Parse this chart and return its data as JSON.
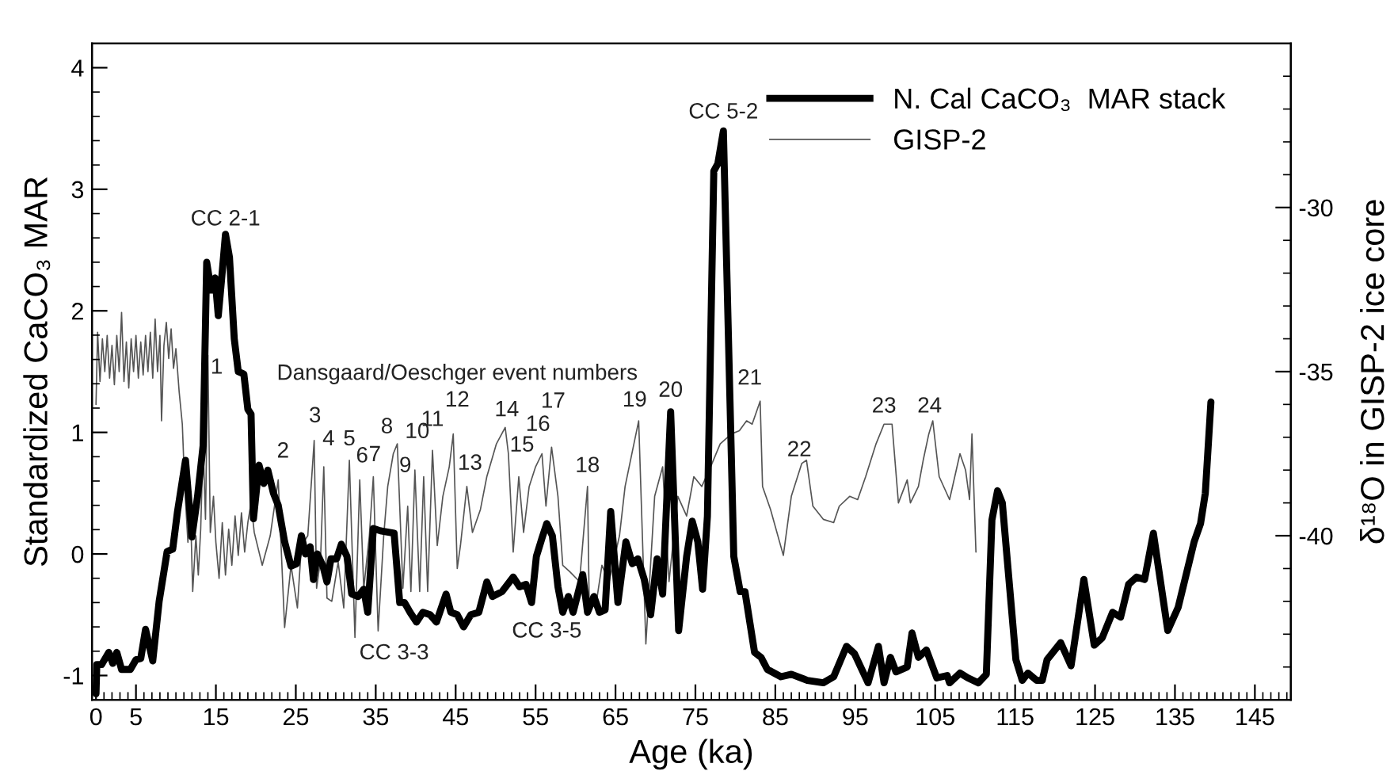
{
  "chart_data": {
    "type": "line",
    "xlabel": "Age (ka)",
    "ylabel": "Standardized CaCO₃ MAR",
    "y2label": "δ¹⁸O in GISP-2 ice core",
    "xlim": [
      -0.5,
      149.5
    ],
    "ylim": [
      -1.2,
      4.2
    ],
    "y2lim": [
      -45,
      -25
    ],
    "xticks": [
      0,
      {
        "value": 1,
        "label": null
      },
      {
        "value": 2,
        "label": null
      },
      {
        "value": 3,
        "label": null
      },
      {
        "value": 4,
        "label": null
      },
      5,
      {
        "value": 6,
        "label": null
      },
      {
        "value": 7,
        "label": null
      },
      {
        "value": 8,
        "label": null
      },
      {
        "value": 9,
        "label": null
      },
      {
        "value": 10,
        "label": null
      },
      {
        "value": 11,
        "label": null
      },
      {
        "value": 12,
        "label": null
      },
      {
        "value": 13,
        "label": null
      },
      {
        "value": 14,
        "label": null
      },
      15,
      {
        "value": 16,
        "label": null
      },
      {
        "value": 17,
        "label": null
      },
      {
        "value": 18,
        "label": null
      },
      {
        "value": 19,
        "label": null
      },
      {
        "value": 20,
        "label": null
      },
      {
        "value": 21,
        "label": null
      },
      {
        "value": 22,
        "label": null
      },
      {
        "value": 23,
        "label": null
      },
      {
        "value": 24,
        "label": null
      },
      25,
      {
        "value": 26,
        "label": null
      },
      {
        "value": 27,
        "label": null
      },
      {
        "value": 28,
        "label": null
      },
      {
        "value": 29,
        "label": null
      },
      {
        "value": 30,
        "label": null
      },
      {
        "value": 31,
        "label": null
      },
      {
        "value": 32,
        "label": null
      },
      {
        "value": 33,
        "label": null
      },
      {
        "value": 34,
        "label": null
      },
      35,
      {
        "value": 36,
        "label": null
      },
      {
        "value": 37,
        "label": null
      },
      {
        "value": 38,
        "label": null
      },
      {
        "value": 39,
        "label": null
      },
      {
        "value": 40,
        "label": null
      },
      {
        "value": 41,
        "label": null
      },
      {
        "value": 42,
        "label": null
      },
      {
        "value": 43,
        "label": null
      },
      {
        "value": 44,
        "label": null
      },
      45,
      {
        "value": 46,
        "label": null
      },
      {
        "value": 47,
        "label": null
      },
      {
        "value": 48,
        "label": null
      },
      {
        "value": 49,
        "label": null
      },
      {
        "value": 50,
        "label": null
      },
      {
        "value": 51,
        "label": null
      },
      {
        "value": 52,
        "label": null
      },
      {
        "value": 53,
        "label": null
      },
      {
        "value": 54,
        "label": null
      },
      55,
      {
        "value": 56,
        "label": null
      },
      {
        "value": 57,
        "label": null
      },
      {
        "value": 58,
        "label": null
      },
      {
        "value": 59,
        "label": null
      },
      {
        "value": 60,
        "label": null
      },
      {
        "value": 61,
        "label": null
      },
      {
        "value": 62,
        "label": null
      },
      {
        "value": 63,
        "label": null
      },
      {
        "value": 64,
        "label": null
      },
      65,
      {
        "value": 66,
        "label": null
      },
      {
        "value": 67,
        "label": null
      },
      {
        "value": 68,
        "label": null
      },
      {
        "value": 69,
        "label": null
      },
      {
        "value": 70,
        "label": null
      },
      {
        "value": 71,
        "label": null
      },
      {
        "value": 72,
        "label": null
      },
      {
        "value": 73,
        "label": null
      },
      {
        "value": 74,
        "label": null
      },
      75,
      {
        "value": 76,
        "label": null
      },
      {
        "value": 77,
        "label": null
      },
      {
        "value": 78,
        "label": null
      },
      {
        "value": 79,
        "label": null
      },
      {
        "value": 80,
        "label": null
      },
      {
        "value": 81,
        "label": null
      },
      {
        "value": 82,
        "label": null
      },
      {
        "value": 83,
        "label": null
      },
      {
        "value": 84,
        "label": null
      },
      85,
      {
        "value": 86,
        "label": null
      },
      {
        "value": 87,
        "label": null
      },
      {
        "value": 88,
        "label": null
      },
      {
        "value": 89,
        "label": null
      },
      {
        "value": 90,
        "label": null
      },
      {
        "value": 91,
        "label": null
      },
      {
        "value": 92,
        "label": null
      },
      {
        "value": 93,
        "label": null
      },
      {
        "value": 94,
        "label": null
      },
      95,
      {
        "value": 96,
        "label": null
      },
      {
        "value": 97,
        "label": null
      },
      {
        "value": 98,
        "label": null
      },
      {
        "value": 99,
        "label": null
      },
      {
        "value": 100,
        "label": null
      },
      {
        "value": 101,
        "label": null
      },
      {
        "value": 102,
        "label": null
      },
      {
        "value": 103,
        "label": null
      },
      {
        "value": 104,
        "label": null
      },
      105,
      {
        "value": 106,
        "label": null
      },
      {
        "value": 107,
        "label": null
      },
      {
        "value": 108,
        "label": null
      },
      {
        "value": 109,
        "label": null
      },
      {
        "value": 110,
        "label": null
      },
      {
        "value": 111,
        "label": null
      },
      {
        "value": 112,
        "label": null
      },
      {
        "value": 113,
        "label": null
      },
      {
        "value": 114,
        "label": null
      },
      115,
      {
        "value": 116,
        "label": null
      },
      {
        "value": 117,
        "label": null
      },
      {
        "value": 118,
        "label": null
      },
      {
        "value": 119,
        "label": null
      },
      {
        "value": 120,
        "label": null
      },
      {
        "value": 121,
        "label": null
      },
      {
        "value": 122,
        "label": null
      },
      {
        "value": 123,
        "label": null
      },
      {
        "value": 124,
        "label": null
      },
      125,
      {
        "value": 126,
        "label": null
      },
      {
        "value": 127,
        "label": null
      },
      {
        "value": 128,
        "label": null
      },
      {
        "value": 129,
        "label": null
      },
      {
        "value": 130,
        "label": null
      },
      {
        "value": 131,
        "label": null
      },
      {
        "value": 132,
        "label": null
      },
      {
        "value": 133,
        "label": null
      },
      {
        "value": 134,
        "label": null
      },
      135,
      {
        "value": 136,
        "label": null
      },
      {
        "value": 137,
        "label": null
      },
      {
        "value": 138,
        "label": null
      },
      {
        "value": 139,
        "label": null
      },
      {
        "value": 140,
        "label": null
      },
      {
        "value": 141,
        "label": null
      },
      {
        "value": 142,
        "label": null
      },
      {
        "value": 143,
        "label": null
      },
      {
        "value": 144,
        "label": null
      },
      145,
      {
        "value": 146,
        "label": null
      },
      {
        "value": 147,
        "label": null
      },
      {
        "value": 148,
        "label": null
      },
      {
        "value": 149,
        "label": null
      }
    ],
    "yticks": [
      -1,
      {
        "value": -0.8,
        "label": null
      },
      {
        "value": -0.6,
        "label": null
      },
      {
        "value": -0.4,
        "label": null
      },
      {
        "value": -0.2,
        "label": null
      },
      0,
      {
        "value": 0.2,
        "label": null
      },
      {
        "value": 0.4,
        "label": null
      },
      {
        "value": 0.6,
        "label": null
      },
      {
        "value": 0.8,
        "label": null
      },
      1,
      {
        "value": 1.2,
        "label": null
      },
      {
        "value": 1.4,
        "label": null
      },
      {
        "value": 1.6,
        "label": null
      },
      {
        "value": 1.8,
        "label": null
      },
      2,
      {
        "value": 2.2,
        "label": null
      },
      {
        "value": 2.4,
        "label": null
      },
      {
        "value": 2.6,
        "label": null
      },
      {
        "value": 2.8,
        "label": null
      },
      3,
      {
        "value": 3.2,
        "label": null
      },
      {
        "value": 3.4,
        "label": null
      },
      {
        "value": 3.6,
        "label": null
      },
      {
        "value": 3.8,
        "label": null
      },
      4
    ],
    "y2ticks": [
      {
        "value": -44,
        "label": null
      },
      {
        "value": -43,
        "label": null
      },
      {
        "value": -42,
        "label": null
      },
      {
        "value": -41,
        "label": null
      },
      -40,
      {
        "value": -39,
        "label": null
      },
      {
        "value": -38,
        "label": null
      },
      {
        "value": -37,
        "label": null
      },
      {
        "value": -36,
        "label": null
      },
      -35,
      {
        "value": -34,
        "label": null
      },
      {
        "value": -33,
        "label": null
      },
      {
        "value": -32,
        "label": null
      },
      {
        "value": -31,
        "label": null
      },
      -30,
      {
        "value": -29,
        "label": null
      },
      {
        "value": -28,
        "label": null
      },
      {
        "value": -27,
        "label": null
      },
      {
        "value": -26,
        "label": null
      }
    ],
    "grid": false,
    "legend": "top right",
    "marker": "none",
    "line_style": "solid",
    "series": [
      {
        "name": "N. Cal CaCO₃  MAR stack",
        "color": "#000000",
        "axis": "y",
        "x": [
          0,
          0.1,
          0.7,
          1.6,
          2.1,
          2.6,
          3.2,
          4.3,
          5,
          5.6,
          6.2,
          7.1,
          7.9,
          8.9,
          9.6,
          10.2,
          11.2,
          12,
          12.7,
          13.4,
          13.85,
          14.4,
          14.9,
          15.3,
          15.7,
          16.2,
          16.7,
          17.3,
          17.8,
          18.5,
          19,
          19.4,
          19.7,
          20.4,
          21,
          21.5,
          22.2,
          22.8,
          23.6,
          24.4,
          25.1,
          25.7,
          26.2,
          26.8,
          27.2,
          27.7,
          28.4,
          28.9,
          29.4,
          30.1,
          30.7,
          31.4,
          32,
          32.8,
          33.5,
          34,
          34.7,
          35.6,
          37.3,
          38,
          38.6,
          39.3,
          40.1,
          40.9,
          41.8,
          42.6,
          43.8,
          44.4,
          45.2,
          46,
          46.9,
          47.9,
          48.9,
          49.6,
          50.8,
          52.2,
          53,
          53.8,
          54.5,
          55.1,
          55.8,
          56.4,
          57.1,
          57.8,
          58.4,
          59.1,
          59.7,
          60.9,
          61.5,
          62.3,
          63,
          63.7,
          64.4,
          65.3,
          66.3,
          67.1,
          67.8,
          68.6,
          69.4,
          70.2,
          70.9,
          71.9,
          72.9,
          73.9,
          74.6,
          75.3,
          75.9,
          76.5,
          77.3,
          77.8,
          78.5,
          79.8,
          80.6,
          81.2,
          82.4,
          83.2,
          84,
          85.7,
          87,
          89,
          91,
          92.3,
          93.9,
          94.9,
          96.6,
          97.9,
          98.6,
          99.4,
          100.1,
          101.5,
          102.1,
          102.9,
          103.9,
          105.2,
          106.5,
          106.8,
          108.1,
          109.1,
          110.4,
          111.4,
          112.1,
          112.8,
          113.4,
          115.1,
          115.9,
          116.6,
          117.7,
          118.4,
          119,
          120.7,
          122,
          123.6,
          124.9,
          125.9,
          127.2,
          128.2,
          129.2,
          130.2,
          131.2,
          132.3,
          134.1,
          135.4,
          137.4,
          138.2,
          138.8,
          139.5
        ],
        "values": [
          -1.15,
          -0.91,
          -0.91,
          -0.81,
          -0.9,
          -0.81,
          -0.95,
          -0.95,
          -0.87,
          -0.86,
          -0.62,
          -0.88,
          -0.39,
          0.02,
          0.04,
          0.35,
          0.77,
          0.14,
          0.47,
          0.89,
          2.4,
          2.17,
          2.27,
          1.96,
          2.25,
          2.63,
          2.44,
          1.77,
          1.5,
          1.48,
          1.19,
          1.15,
          0.29,
          0.73,
          0.58,
          0.69,
          0.5,
          0.4,
          0.1,
          -0.1,
          -0.08,
          0.15,
          0,
          0.06,
          -0.21,
          0,
          -0.1,
          -0.23,
          -0.04,
          -0.04,
          0.08,
          -0.02,
          -0.33,
          -0.35,
          -0.29,
          -0.48,
          0.21,
          0.19,
          0.17,
          -0.4,
          -0.4,
          -0.48,
          -0.56,
          -0.48,
          -0.5,
          -0.56,
          -0.33,
          -0.48,
          -0.5,
          -0.6,
          -0.5,
          -0.48,
          -0.23,
          -0.35,
          -0.31,
          -0.19,
          -0.27,
          -0.25,
          -0.4,
          -0.02,
          0.13,
          0.25,
          0.15,
          -0.27,
          -0.48,
          -0.35,
          -0.48,
          -0.17,
          -0.48,
          -0.35,
          -0.48,
          -0.46,
          0.35,
          -0.4,
          0.1,
          -0.08,
          -0.04,
          -0.21,
          -0.5,
          -0.04,
          -0.33,
          1.17,
          -0.63,
          -0.02,
          0.27,
          0.1,
          -0.29,
          0.31,
          3.15,
          3.21,
          3.48,
          -0.02,
          -0.31,
          -0.31,
          -0.81,
          -0.85,
          -0.95,
          -1.01,
          -0.99,
          -1.04,
          -1.06,
          -1.01,
          -0.76,
          -0.82,
          -1.06,
          -0.76,
          -1.06,
          -0.85,
          -0.97,
          -0.93,
          -0.65,
          -0.85,
          -0.79,
          -1.02,
          -1,
          -1.06,
          -0.98,
          -1.02,
          -1.06,
          -0.99,
          0.28,
          0.52,
          0.42,
          -0.87,
          -1.04,
          -0.98,
          -1.04,
          -1.04,
          -0.87,
          -0.73,
          -0.92,
          -0.21,
          -0.75,
          -0.69,
          -0.48,
          -0.52,
          -0.25,
          -0.19,
          -0.21,
          0.17,
          -0.63,
          -0.44,
          0.1,
          0.25,
          0.5,
          1.25
        ]
      },
      {
        "name": "GISP-2",
        "color": "#555555",
        "axis": "y2",
        "x": [
          0,
          0.2,
          0.5,
          0.8,
          1.1,
          1.4,
          1.7,
          2,
          2.3,
          2.6,
          2.9,
          3.2,
          3.5,
          3.8,
          4.1,
          4.4,
          4.7,
          5,
          5.3,
          5.6,
          5.9,
          6.2,
          6.5,
          6.8,
          7.1,
          7.4,
          7.7,
          8,
          8.2,
          8.5,
          8.8,
          9.1,
          9.4,
          9.7,
          10,
          10.4,
          10.8,
          11.1,
          11.5,
          11.8,
          12.1,
          12.5,
          12.8,
          13.1,
          13.4,
          13.7,
          14,
          14.3,
          14.7,
          15,
          15.4,
          15.8,
          16.2,
          16.6,
          17,
          17.4,
          17.8,
          18.2,
          18.6,
          19,
          19.4,
          19.8,
          20.8,
          21.8,
          22.8,
          23.6,
          24.4,
          25.2,
          25.7,
          26.5,
          27.3,
          27.6,
          28.1,
          28.5,
          28.9,
          29.5,
          30.3,
          31,
          31.7,
          32.4,
          33,
          33.5,
          34.2,
          34.7,
          35.3,
          36,
          36.5,
          37.2,
          37.7,
          38.4,
          39,
          39.4,
          39.9,
          40.5,
          41,
          41.5,
          42.1,
          42.7,
          43.4,
          44.2,
          44.7,
          45.2,
          45.6,
          46.4,
          47.1,
          48.1,
          48.9,
          50.1,
          51.2,
          51.6,
          52.2,
          52.9,
          53.5,
          54.2,
          55,
          55.8,
          56.3,
          57,
          57.8,
          58.4,
          59.3,
          60.5,
          61.5,
          61.7,
          62.5,
          63.3,
          64.2,
          65.5,
          66.2,
          67.9,
          68.8,
          69.9,
          70.9,
          71.7,
          72.8,
          73.9,
          74.8,
          75.8,
          76.9,
          78.1,
          79.5,
          80.5,
          81.4,
          82.1,
          83.1,
          83.4,
          84.4,
          86,
          87,
          88.3,
          88.9,
          89.7,
          91,
          92.3,
          93,
          94.3,
          95.3,
          96.3,
          97.6,
          98.6,
          99.6,
          100.4,
          101.5,
          101.9,
          102.9,
          103.5,
          104.2,
          104.7,
          105.5,
          106.8,
          108.1,
          108.8,
          109.3,
          109.6,
          110.1
        ],
        "values": [
          -36.0,
          -33.8,
          -35.3,
          -34.0,
          -35.0,
          -33.9,
          -35.2,
          -34.2,
          -35.4,
          -33.9,
          -35.0,
          -33.2,
          -35.3,
          -34.1,
          -35.5,
          -34.0,
          -35.0,
          -33.9,
          -35.2,
          -34.1,
          -35.1,
          -33.9,
          -35.0,
          -33.8,
          -35.2,
          -33.4,
          -35.0,
          -33.9,
          -36.5,
          -34.2,
          -33.5,
          -34.6,
          -33.7,
          -34.9,
          -34.3,
          -35.6,
          -36.6,
          -38.5,
          -40.2,
          -39.0,
          -41.7,
          -40.0,
          -41.2,
          -39.8,
          -37.2,
          -39.5,
          -34.5,
          -39.9,
          -38.8,
          -40.2,
          -41.3,
          -39.6,
          -41.2,
          -39.8,
          -40.9,
          -39.4,
          -40.6,
          -39.3,
          -40.5,
          -39.6,
          -39.0,
          -39.9,
          -40.9,
          -40.0,
          -38.3,
          -42.8,
          -40.9,
          -42.2,
          -40.3,
          -40.0,
          -37.1,
          -41.6,
          -40.7,
          -37.9,
          -41.9,
          -42.0,
          -40.8,
          -42.2,
          -37.7,
          -43.1,
          -38.3,
          -41.6,
          -40.0,
          -38.2,
          -42.9,
          -40.0,
          -38.5,
          -37.5,
          -37.2,
          -41.6,
          -39.1,
          -41.7,
          -38.0,
          -41.7,
          -38.2,
          -41.7,
          -37.4,
          -40.3,
          -38.8,
          -37.9,
          -36.9,
          -41.0,
          -40.3,
          -38.5,
          -39.9,
          -39.2,
          -38.2,
          -37.2,
          -36.7,
          -37.5,
          -40.5,
          -38.2,
          -39.9,
          -38.5,
          -37.9,
          -37.5,
          -39.1,
          -37.3,
          -38.8,
          -40.9,
          -41.1,
          -41.4,
          -38.5,
          -41.9,
          -42.2,
          -40.9,
          -41.4,
          -40.0,
          -38.5,
          -36.5,
          -43.3,
          -38.8,
          -37.9,
          -41.4,
          -38.8,
          -39.4,
          -38.2,
          -38.5,
          -37.9,
          -37.2,
          -36.9,
          -36.8,
          -36.5,
          -36.6,
          -35.9,
          -38.5,
          -39.2,
          -40.6,
          -38.8,
          -37.8,
          -37.7,
          -39.1,
          -39.5,
          -39.6,
          -39.1,
          -38.8,
          -38.9,
          -38.2,
          -37.2,
          -36.6,
          -36.6,
          -39.0,
          -38.3,
          -39.0,
          -38.5,
          -37.7,
          -36.9,
          -36.5,
          -38.2,
          -38.9,
          -37.5,
          -38.0,
          -38.9,
          -36.9,
          -40.5
        ]
      }
    ],
    "annotations": [
      "CC 2-1",
      "CC 5-2",
      "CC 3-3",
      "CC 3-5",
      "Dansgaard/Oeschger event numbers",
      "1",
      "2",
      "3",
      "4",
      "5",
      "6",
      "7",
      "8",
      "9",
      "10",
      "11",
      "12",
      "13",
      "14",
      "15",
      "16",
      "17",
      "18",
      "19",
      "20",
      "21",
      "22",
      "23",
      "24"
    ]
  }
}
